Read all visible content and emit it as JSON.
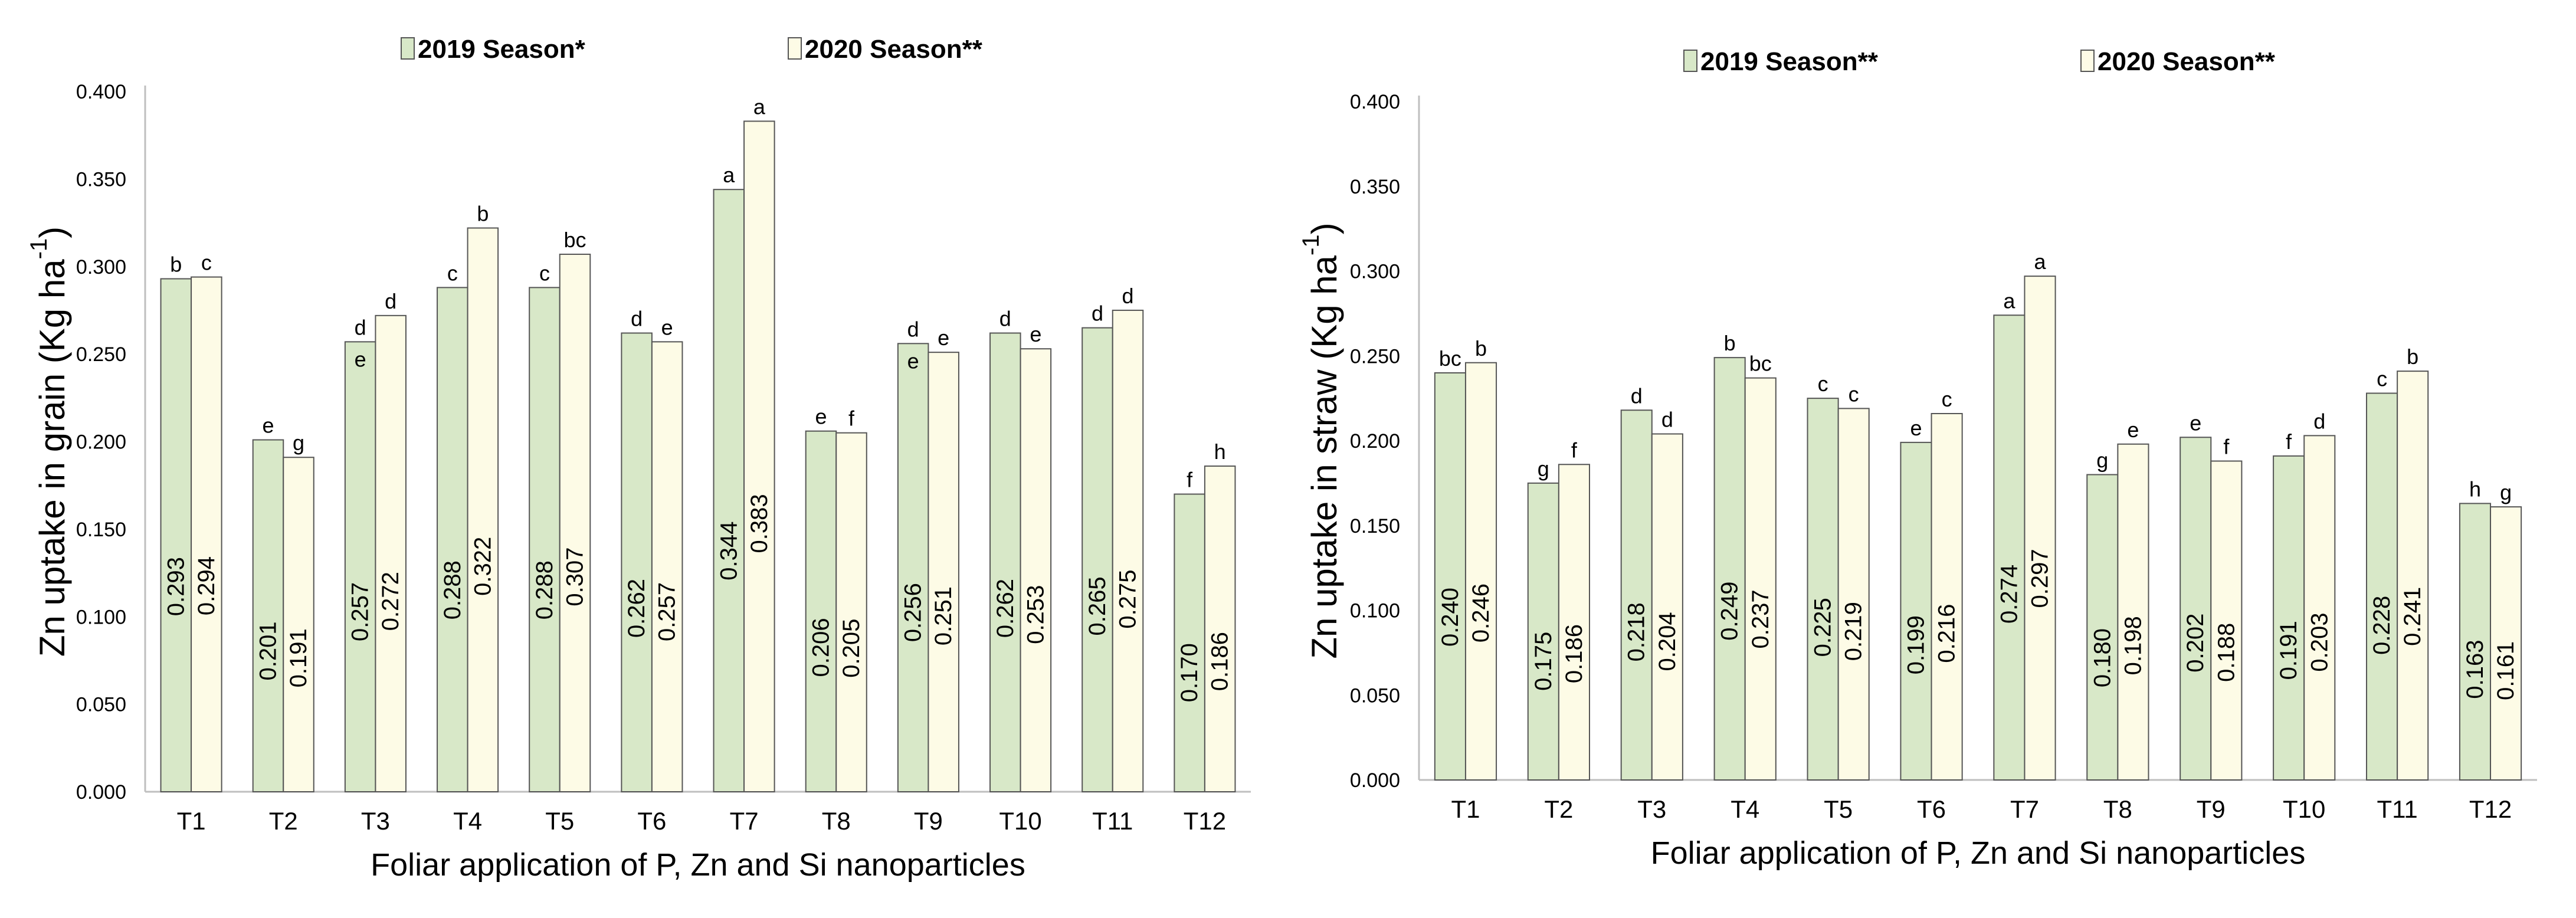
{
  "colors": {
    "series_2019_fill": "#d8e8c8",
    "series_2020_fill": "#fdfbe6",
    "bar_stroke": "#555555",
    "axis": "#bfbfbf",
    "text": "#000000"
  },
  "chart_data": [
    {
      "type": "bar",
      "title": "",
      "xlabel": "Foliar application of P, Zn and Si nanoparticles",
      "ylabel_main": "Zn uptake in grain (Kg ha",
      "ylabel_sup": "-1",
      "ylabel_end": ")",
      "ylim": [
        0,
        0.4
      ],
      "yticks": [
        "0.000",
        "0.050",
        "0.100",
        "0.150",
        "0.200",
        "0.250",
        "0.300",
        "0.350",
        "0.400"
      ],
      "grid": false,
      "legend_position": "top",
      "categories": [
        "T1",
        "T2",
        "T3",
        "T4",
        "T5",
        "T6",
        "T7",
        "T8",
        "T9",
        "T10",
        "T11",
        "T12"
      ],
      "series": [
        {
          "name": "2019 Season*",
          "values": [
            0.293,
            0.201,
            0.257,
            0.288,
            0.288,
            0.262,
            0.344,
            0.206,
            0.256,
            0.262,
            0.265,
            0.17
          ],
          "value_labels": [
            "0.293",
            "0.201",
            "0.257",
            "0.288",
            "0.288",
            "0.262",
            "0.344",
            "0.206",
            "0.256",
            "0.262",
            "0.265",
            "0.170"
          ],
          "letters": [
            "b",
            "e",
            "d",
            "c",
            "c",
            "d",
            "a",
            "e",
            "d",
            "d",
            "d",
            "f"
          ],
          "inner_letters": [
            "",
            "",
            "e",
            "",
            "",
            "",
            "",
            "",
            "e",
            "",
            "",
            ""
          ]
        },
        {
          "name": "2020 Season**",
          "values": [
            0.294,
            0.191,
            0.272,
            0.322,
            0.307,
            0.257,
            0.383,
            0.205,
            0.251,
            0.253,
            0.275,
            0.186
          ],
          "value_labels": [
            "0.294",
            "0.191",
            "0.272",
            "0.322",
            "0.307",
            "0.257",
            "0.383",
            "0.205",
            "0.251",
            "0.253",
            "0.275",
            "0.186"
          ],
          "letters": [
            "c",
            "g",
            "d",
            "b",
            "bc",
            "e",
            "a",
            "f",
            "e",
            "e",
            "d",
            "h"
          ],
          "inner_letters": [
            "",
            "",
            "",
            "",
            "",
            "",
            "",
            "",
            "",
            "",
            "",
            ""
          ]
        }
      ]
    },
    {
      "type": "bar",
      "title": "",
      "xlabel": "Foliar application of P, Zn and Si nanoparticles",
      "ylabel_main": "Zn uptake in straw (Kg ha",
      "ylabel_sup": "-1",
      "ylabel_end": ")",
      "ylim": [
        0,
        0.4
      ],
      "yticks": [
        "0.000",
        "0.050",
        "0.100",
        "0.150",
        "0.200",
        "0.250",
        "0.300",
        "0.350",
        "0.400"
      ],
      "grid": false,
      "legend_position": "top",
      "categories": [
        "T1",
        "T2",
        "T3",
        "T4",
        "T5",
        "T6",
        "T7",
        "T8",
        "T9",
        "T10",
        "T11",
        "T12"
      ],
      "series": [
        {
          "name": "2019 Season**",
          "values": [
            0.24,
            0.175,
            0.218,
            0.249,
            0.225,
            0.199,
            0.274,
            0.18,
            0.202,
            0.191,
            0.228,
            0.163
          ],
          "value_labels": [
            "0.240",
            "0.175",
            "0.218",
            "0.249",
            "0.225",
            "0.199",
            "0.274",
            "0.180",
            "0.202",
            "0.191",
            "0.228",
            "0.163"
          ],
          "letters": [
            "bc",
            "g",
            "d",
            "b",
            "c",
            "e",
            "a",
            "g",
            "e",
            "f",
            "c",
            "h"
          ],
          "inner_letters": [
            "",
            "",
            "",
            "",
            "",
            "",
            "",
            "",
            "",
            "",
            "",
            ""
          ]
        },
        {
          "name": "2020 Season**",
          "values": [
            0.246,
            0.186,
            0.204,
            0.237,
            0.219,
            0.216,
            0.297,
            0.198,
            0.188,
            0.203,
            0.241,
            0.161
          ],
          "value_labels": [
            "0.246",
            "0.186",
            "0.204",
            "0.237",
            "0.219",
            "0.216",
            "0.297",
            "0.198",
            "0.188",
            "0.203",
            "0.241",
            "0.161"
          ],
          "letters": [
            "b",
            "f",
            "d",
            "bc",
            "c",
            "c",
            "a",
            "e",
            "f",
            "d",
            "b",
            "g"
          ],
          "inner_letters": [
            "",
            "",
            "",
            "",
            "",
            "",
            "",
            "",
            "",
            "",
            "",
            ""
          ]
        }
      ]
    }
  ]
}
